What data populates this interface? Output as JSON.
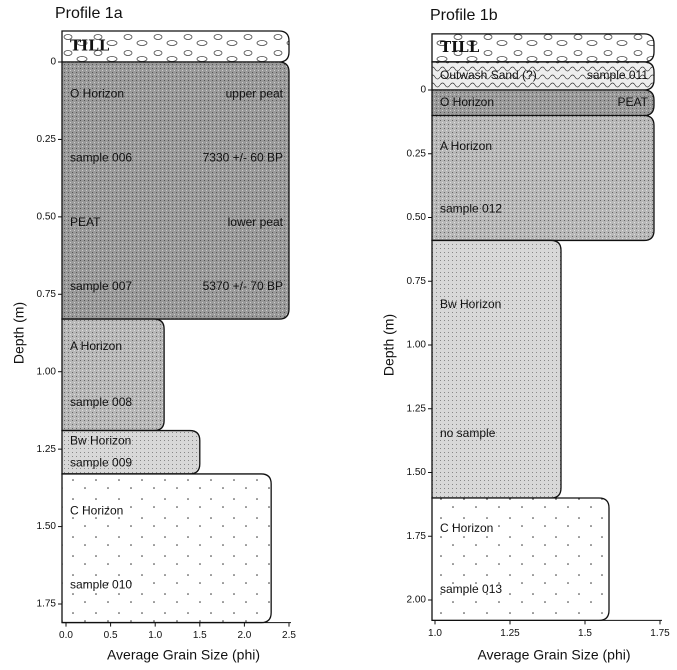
{
  "panels": [
    {
      "title": "Profile 1a",
      "ylabel": "Depth (m)",
      "xlabel": "Average Grain Size (phi)",
      "xlim": [
        0,
        2.5
      ],
      "ylim": [
        0,
        1.75
      ],
      "xticks": [
        {
          "value": 0,
          "label": "0.0"
        },
        0.5,
        {
          "value": 1,
          "label": "1.0"
        },
        1.5,
        {
          "value": 2,
          "label": "2.0"
        },
        2.5
      ],
      "yticks": [
        0,
        0.25,
        {
          "value": 0.5,
          "label": "0.50"
        },
        0.75,
        {
          "value": 1,
          "label": "1.00"
        },
        1.25,
        {
          "value": 1.5,
          "label": "1.50"
        },
        1.75
      ],
      "layers": [
        {
          "kind": "till",
          "top": -0.1,
          "bottom": 0,
          "grain": 2.5,
          "labels": [
            "TILL"
          ],
          "labels_right": []
        },
        {
          "kind": "peat",
          "top": 0,
          "bottom": 0.83,
          "grain": 2.5,
          "labels": [
            "O Horizon",
            "sample 006",
            "PEAT",
            "sample 007"
          ],
          "labels_right": [
            "upper peat",
            "7330 +/- 60 BP",
            "lower peat",
            "5370 +/- 70 BP"
          ]
        },
        {
          "kind": "a",
          "top": 0.83,
          "bottom": 1.19,
          "grain": 1.1,
          "labels": [
            "A Horizon",
            "sample 008"
          ],
          "labels_right": []
        },
        {
          "kind": "bw",
          "top": 1.19,
          "bottom": 1.33,
          "grain": 1.5,
          "labels": [
            "Bw Horizon",
            "sample 009"
          ],
          "labels_right": []
        },
        {
          "kind": "c",
          "top": 1.33,
          "bottom": 1.81,
          "grain": 2.3,
          "labels": [
            "C Horizon",
            "sample 010"
          ],
          "labels_right": []
        }
      ]
    },
    {
      "title": "Profile 1b",
      "ylabel": "Depth (m)",
      "xlabel": "Average Grain Size (phi)",
      "xlim": [
        1,
        1.75
      ],
      "ylim": [
        0,
        2
      ],
      "xticks": [
        {
          "value": 1,
          "label": "1.0"
        },
        1.25,
        1.5,
        1.75
      ],
      "yticks": [
        0,
        0.25,
        {
          "value": 0.5,
          "label": "0.50"
        },
        0.75,
        {
          "value": 1,
          "label": "1.00"
        },
        1.25,
        {
          "value": 1.5,
          "label": "1.50"
        },
        1.75,
        {
          "value": 2,
          "label": "2.00"
        }
      ],
      "layers": [
        {
          "kind": "till",
          "top": -0.22,
          "bottom": -0.11,
          "grain": 1.73,
          "labels": [
            "TILL"
          ],
          "labels_right": []
        },
        {
          "kind": "sand",
          "top": -0.11,
          "bottom": 0,
          "grain": 1.73,
          "labels": [
            "Outwash Sand (?)"
          ],
          "labels_right": [
            "sample 011"
          ]
        },
        {
          "kind": "peat",
          "top": 0,
          "bottom": 0.1,
          "grain": 1.73,
          "labels": [
            "O Horizon"
          ],
          "labels_right": [
            "PEAT"
          ]
        },
        {
          "kind": "a",
          "top": 0.1,
          "bottom": 0.59,
          "grain": 1.73,
          "labels": [
            "A Horizon",
            "sample 012"
          ],
          "labels_right": []
        },
        {
          "kind": "bw",
          "top": 0.59,
          "bottom": 1.6,
          "grain": 1.42,
          "labels": [
            "Bw Horizon",
            "no sample"
          ],
          "labels_right": []
        },
        {
          "kind": "c",
          "top": 1.6,
          "bottom": 2.08,
          "grain": 1.58,
          "labels": [
            "C Horizon",
            "sample 013"
          ],
          "labels_right": []
        }
      ]
    }
  ]
}
